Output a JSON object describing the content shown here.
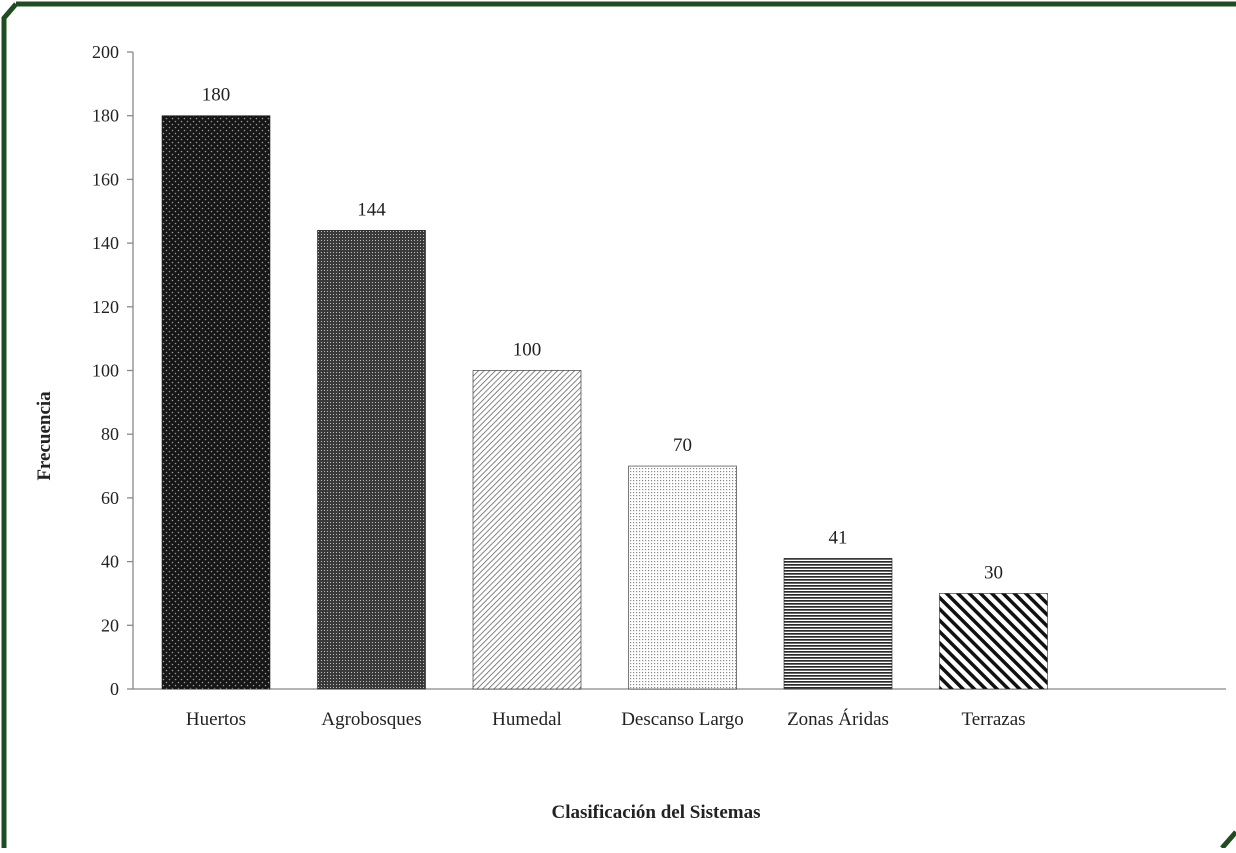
{
  "chart_data": {
    "type": "bar",
    "categories": [
      "Huertos",
      "Agrobosques",
      "Humedal",
      "Descanso Largo",
      "Zonas Áridas",
      "Terrazas"
    ],
    "values": [
      180,
      144,
      100,
      70,
      41,
      30
    ],
    "data_labels": [
      "180",
      "144",
      "100",
      "70",
      "41",
      "30"
    ],
    "xlabel": "Clasificación del Sistemas",
    "ylabel": "Frecuencia",
    "ylim": [
      0,
      200
    ],
    "yticks": [
      0,
      20,
      40,
      60,
      80,
      100,
      120,
      140,
      160,
      180,
      200
    ],
    "grid": false,
    "legend": "none",
    "patterns": [
      "dark-dots",
      "dense-dots",
      "diagonal-lines-light",
      "light-dots",
      "horizontal-lines",
      "diagonal-lines-bold"
    ]
  },
  "colors": {
    "frame_border": "#1f4d1f",
    "bar_dark": "#111111",
    "axis": "#888888"
  }
}
